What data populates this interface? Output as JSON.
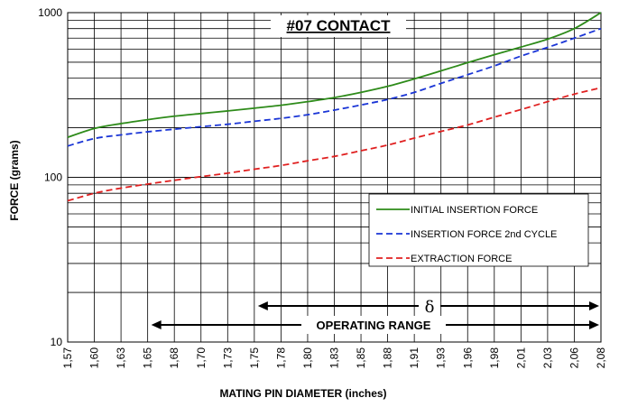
{
  "chart_data": {
    "type": "line",
    "title": "#07 CONTACT",
    "xlabel": "MATING PIN DIAMETER (inches)",
    "ylabel": "FORCE (grams)",
    "y_scale": "log",
    "ylim": [
      10,
      1000
    ],
    "y_ticks": [
      "10",
      "100",
      "1000"
    ],
    "x_ticks": [
      "1,57",
      "1,60",
      "1,63",
      "1,65",
      "1,68",
      "1,70",
      "1,73",
      "1,75",
      "1,78",
      "1,80",
      "1,83",
      "1,85",
      "1,88",
      "1,91",
      "1,93",
      "1,96",
      "1,98",
      "2,01",
      "2,03",
      "2,06",
      "2,08"
    ],
    "grid": true,
    "legend_position": "right",
    "series": [
      {
        "name": "INITIAL INSERTION FORCE",
        "color": "#2e8b1a",
        "style": "solid",
        "values": [
          175,
          198,
          212,
          224,
          235,
          244,
          253,
          263,
          274,
          288,
          305,
          328,
          357,
          396,
          443,
          497,
          555,
          618,
          690,
          800,
          1000
        ]
      },
      {
        "name": "INSERTION FORCE 2nd CYCLE",
        "color": "#1a35d6",
        "style": "dashed",
        "values": [
          155,
          172,
          181,
          189,
          196,
          203,
          210,
          219,
          228,
          240,
          256,
          275,
          297,
          328,
          372,
          420,
          475,
          545,
          615,
          700,
          800
        ]
      },
      {
        "name": "EXTRACTION FORCE",
        "color": "#e02020",
        "style": "dashed",
        "values": [
          72,
          80,
          86,
          91,
          96,
          101,
          106,
          112,
          118,
          126,
          134,
          145,
          157,
          173,
          190,
          208,
          232,
          258,
          288,
          320,
          350
        ]
      }
    ],
    "annotations": {
      "delta_symbol": "δ",
      "operating_range": "OPERATING RANGE"
    }
  }
}
